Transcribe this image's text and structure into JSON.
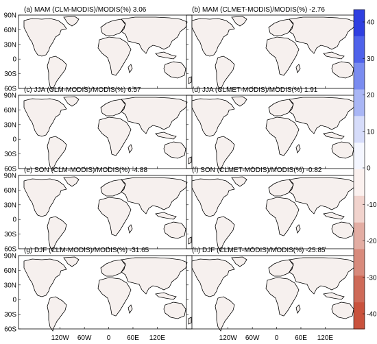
{
  "panels": [
    {
      "id": "a",
      "title": "(a) MAM (CLM-MODIS)/MODIS(%) 3.06"
    },
    {
      "id": "b",
      "title": "(b) MAM (CLMET-MODIS)/MODIS(%) -2.76"
    },
    {
      "id": "c",
      "title": "(c) JJA (CLM-MODIS)/MODIS(%) 6.57"
    },
    {
      "id": "d",
      "title": "(d) JJA (CLMET-MODIS)/MODIS(%) 1.91"
    },
    {
      "id": "e",
      "title": "(e) SON (CLM-MODIS)/MODIS(%) -4.88"
    },
    {
      "id": "f",
      "title": "(f) SON (CLMET-MODIS)/MODIS(%) -0.82"
    },
    {
      "id": "g",
      "title": "(g) DJF (CLM-MODIS)/MODIS(%) -31.65"
    },
    {
      "id": "h",
      "title": "(h) DJF (CLMET-MODIS)/MODIS(%) -25.85"
    }
  ],
  "lat_ticks": [
    "90N",
    "60N",
    "30N",
    "0",
    "30S",
    "60S"
  ],
  "lon_ticks": [
    "120W",
    "60W",
    "0",
    "60E",
    "120E"
  ],
  "colorbar": {
    "ticks": [
      "40",
      "30",
      "20",
      "10",
      "0",
      "-10",
      "-20",
      "-30",
      "-40"
    ],
    "colors": [
      "#2f3fe0",
      "#4f62ea",
      "#7a8cf0",
      "#a9b6f5",
      "#d6dcfa",
      "#f4f6ff",
      "#fbf1ef",
      "#f1d3cd",
      "#e3ada3",
      "#d88a7c",
      "#ce6a58",
      "#c9523d"
    ]
  }
}
